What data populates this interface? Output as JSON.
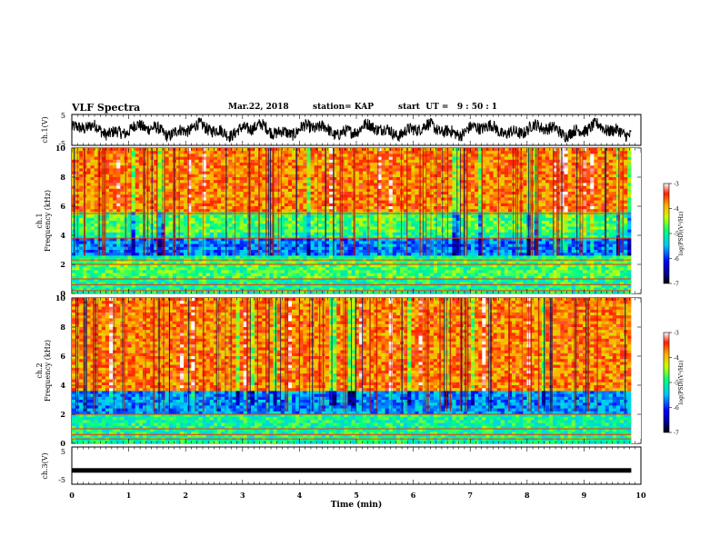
{
  "header": {
    "title": "VLF Spectra",
    "date": "Mar.22, 2018",
    "station": "station= KAP",
    "start": "start  UT =   9 : 50 : 1"
  },
  "chart_data": [
    {
      "type": "line",
      "panel": "ch1-waveform",
      "ylabel": "ch.1(V)",
      "ylim": [
        -5,
        5
      ],
      "xlim": [
        0,
        10
      ],
      "yticks": [
        "5",
        "-5"
      ]
    },
    {
      "type": "heatmap",
      "panel": "ch1-spectrogram",
      "ylabel": "ch.1\nFrequency (kHz)",
      "ylabel_lines": [
        "ch.1",
        "Frequency  (kHz)"
      ],
      "ylim": [
        0,
        10
      ],
      "yticks": [
        "0",
        "2",
        "4",
        "6",
        "8",
        "10"
      ],
      "colorbar": {
        "label": "log(PSD)(V²/Hz)",
        "range": [
          -7,
          -3
        ],
        "ticks": [
          "-3",
          "-4",
          "-5",
          "-6",
          "-7"
        ]
      },
      "bands_khz": [
        0.2,
        0.6,
        1.0,
        2.0,
        2.3,
        3.8,
        5.5
      ]
    },
    {
      "type": "heatmap",
      "panel": "ch2-spectrogram",
      "ylabel_lines": [
        "ch.2",
        "Frequency  (kHz)"
      ],
      "ylim": [
        0,
        10
      ],
      "yticks": [
        "0",
        "2",
        "4",
        "6",
        "8",
        "10"
      ],
      "colorbar": {
        "label": "log(PSD)(V²/Hz)",
        "range": [
          -7,
          -3
        ],
        "ticks": [
          "-3",
          "-4",
          "-5",
          "-6",
          "-7"
        ]
      },
      "bands_khz": [
        0.3,
        0.6,
        1.0,
        2.0
      ]
    },
    {
      "type": "line",
      "panel": "ch3-waveform",
      "ylabel": "ch.3(V)",
      "ylim": [
        -5,
        5
      ],
      "xlim": [
        0,
        10
      ],
      "yticks": [
        "5",
        "-5"
      ],
      "level": -1.3
    }
  ],
  "xaxis": {
    "label": "Time  (min)",
    "ticks": [
      "0",
      "1",
      "2",
      "3",
      "4",
      "5",
      "6",
      "7",
      "8",
      "9",
      "10"
    ],
    "data_end_min": 9.83
  }
}
